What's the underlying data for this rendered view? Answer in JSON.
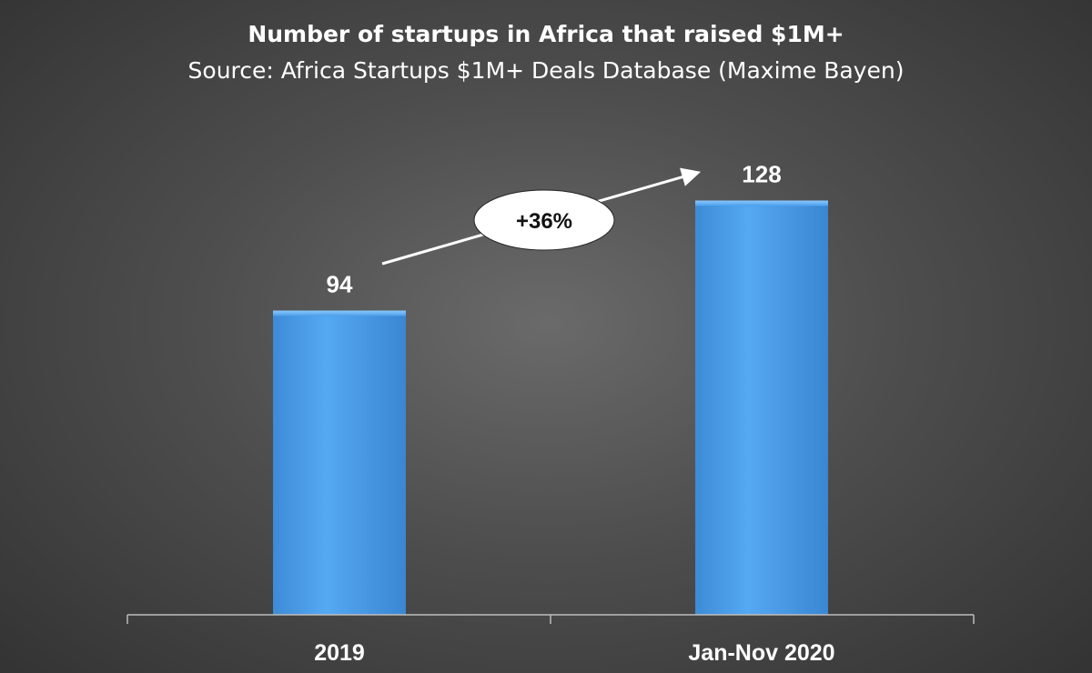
{
  "chart_data": {
    "type": "bar",
    "title": "Number of startups in Africa that raised $1M+",
    "subtitle": "Source: Africa Startups $1M+ Deals Database (Maxime Bayen)",
    "categories": [
      "2019",
      "Jan-Nov 2020"
    ],
    "values": [
      94,
      128
    ],
    "xlabel": "",
    "ylabel": "",
    "ylim": [
      0,
      145
    ],
    "grid": false,
    "legend": "none",
    "bar_color": "#4a9ee8",
    "annotation": {
      "text": "+36%",
      "from": "2019",
      "to": "Jan-Nov 2020"
    }
  }
}
